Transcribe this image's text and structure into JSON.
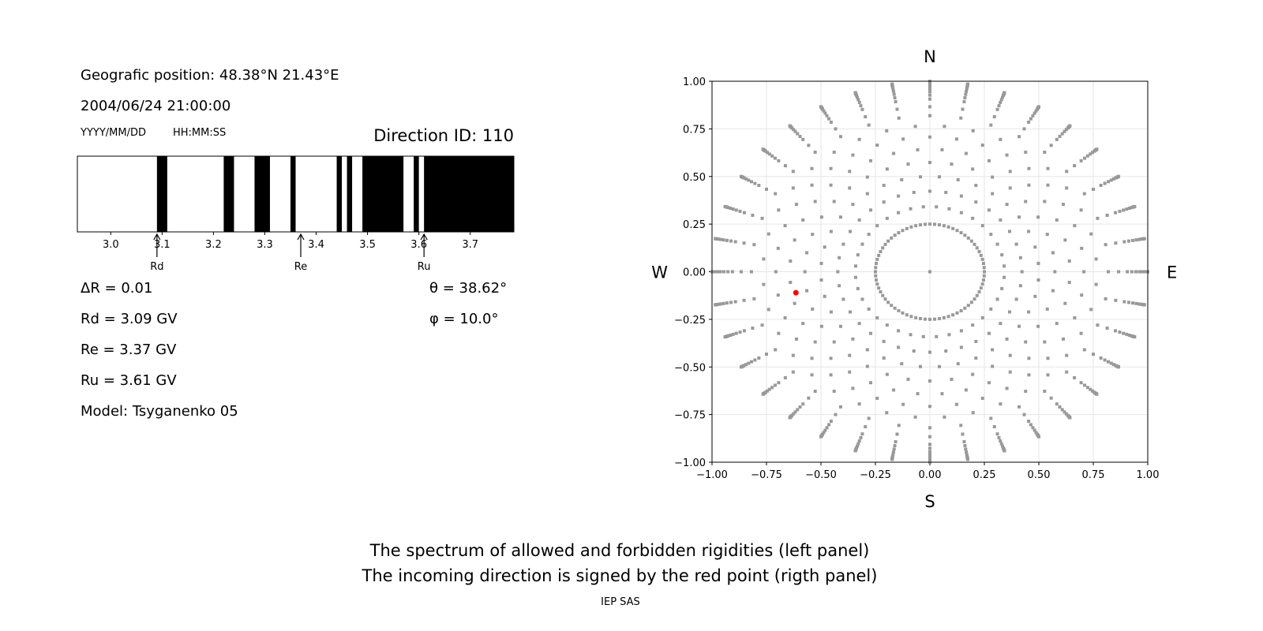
{
  "left_panel": {
    "position": "Geografic position: 48.38°N 21.43°E",
    "datetime": "2004/06/24 21:00:00",
    "date_format": "YYYY/MM/DD",
    "time_format": "HH:MM:SS",
    "direction_id": "Direction ID: 110",
    "delta_r": "ΔR = 0.01",
    "rd": "Rd = 3.09 GV",
    "re": "Re = 3.37 GV",
    "ru": "Ru = 3.61 GV",
    "model": "Model: Tsyganenko 05",
    "theta": "θ = 38.62°",
    "phi": "φ = 10.0°"
  },
  "footer": {
    "line1": "The spectrum of allowed and forbidden rigidities (left panel)",
    "line2": "The incoming direction is signed by the red point (rigth panel)",
    "credit": "IEP SAS"
  },
  "chart_data": [
    {
      "type": "bar",
      "xlim": [
        2.935,
        3.785
      ],
      "x_ticks": [
        3.0,
        3.1,
        3.2,
        3.3,
        3.4,
        3.5,
        3.6,
        3.7
      ],
      "x_tick_labels": [
        "3.0",
        "3.1",
        "3.2",
        "3.3",
        "3.4",
        "3.5",
        "3.6",
        "3.7"
      ],
      "forbidden_bands": [
        [
          3.09,
          3.11
        ],
        [
          3.22,
          3.24
        ],
        [
          3.28,
          3.31
        ],
        [
          3.35,
          3.36
        ],
        [
          3.44,
          3.45
        ],
        [
          3.46,
          3.47
        ],
        [
          3.49,
          3.57
        ],
        [
          3.59,
          3.6
        ],
        [
          3.61,
          3.785
        ]
      ],
      "markers": [
        {
          "label": "Rd",
          "value": 3.09
        },
        {
          "label": "Re",
          "value": 3.37
        },
        {
          "label": "Ru",
          "value": 3.61
        }
      ],
      "colors": {
        "forbidden": "#000000",
        "allowed": "#ffffff"
      }
    },
    {
      "type": "scatter",
      "xlim": [
        -1,
        1
      ],
      "ylim": [
        -1,
        1
      ],
      "ticks": [
        -1.0,
        -0.75,
        -0.5,
        -0.25,
        0.0,
        0.25,
        0.5,
        0.75,
        1.0
      ],
      "tick_labels": [
        "−1.00",
        "−0.75",
        "−0.50",
        "−0.25",
        "0.00",
        "0.25",
        "0.50",
        "0.75",
        "1.00"
      ],
      "grid": true,
      "directions": {
        "n": "N",
        "s": "S",
        "e": "E",
        "w": "W"
      },
      "grid_points": {
        "azimuth_step_deg": 10,
        "zenith_angles_deg": [
          15,
          20,
          25,
          30,
          35,
          40,
          45,
          50,
          55,
          60,
          65,
          68,
          71,
          74,
          77,
          80,
          82,
          84,
          86,
          88,
          90
        ],
        "inner_ring_radius": 0.25,
        "inner_ring_step_deg": 5,
        "color": "#999999"
      },
      "selected_point": {
        "x": -0.615,
        "y": -0.11,
        "color": "#ff0000"
      }
    }
  ]
}
